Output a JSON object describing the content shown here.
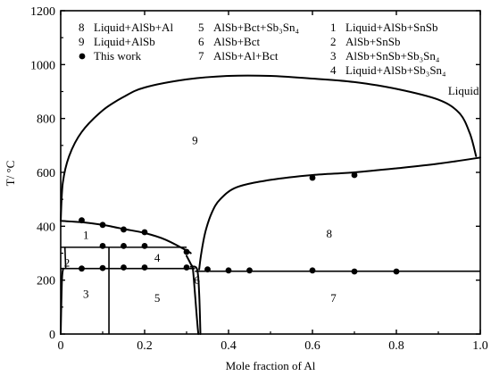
{
  "chart_data": {
    "type": "scatter",
    "xlabel": "Mole fraction of Al",
    "ylabel": "T/ °C",
    "xlim": [
      0,
      1
    ],
    "ylim": [
      0,
      1200
    ],
    "x_ticks": [
      "0",
      "0.2",
      "0.4",
      "0.6",
      "0.8",
      "1.0"
    ],
    "y_ticks": [
      "0",
      "200",
      "400",
      "600",
      "800",
      "1000",
      "1200"
    ],
    "grid": false,
    "legend": [
      {
        "key": "8",
        "text": "Liquid+AlSb+Al"
      },
      {
        "key": "9",
        "text": "Liquid+AlSb"
      },
      {
        "key": "●",
        "text": "This work"
      },
      {
        "key": "5",
        "text": "AlSb+Bct+Sb₃Sn₄"
      },
      {
        "key": "6",
        "text": "AlSb+Bct"
      },
      {
        "key": "7",
        "text": "AlSb+Al+Bct"
      },
      {
        "key": "1",
        "text": "Liquid+AlSb+SnSb"
      },
      {
        "key": "2",
        "text": "AlSb+SnSb"
      },
      {
        "key": "3",
        "text": "AlSb+SnSb+Sb₃Sn₄"
      },
      {
        "key": "4",
        "text": "Liquid+AlSb+Sb₃Sn₄"
      }
    ],
    "region_labels": [
      {
        "text": "9",
        "x": 0.32,
        "y": 705
      },
      {
        "text": "Liquid",
        "x": 0.96,
        "y": 888
      },
      {
        "text": "8",
        "x": 0.64,
        "y": 358
      },
      {
        "text": "1",
        "x": 0.06,
        "y": 353
      },
      {
        "text": "4",
        "x": 0.23,
        "y": 268
      },
      {
        "text": "2",
        "x": 0.015,
        "y": 250
      },
      {
        "text": "3",
        "x": 0.06,
        "y": 135
      },
      {
        "text": "5",
        "x": 0.23,
        "y": 120
      },
      {
        "text": "6",
        "x": 0.325,
        "y": 185
      },
      {
        "text": "7",
        "x": 0.65,
        "y": 120
      }
    ],
    "series": [
      {
        "name": "This work",
        "points": [
          [
            0.05,
            422
          ],
          [
            0.1,
            405
          ],
          [
            0.15,
            388
          ],
          [
            0.2,
            378
          ],
          [
            0.3,
            305
          ],
          [
            0.1,
            327
          ],
          [
            0.15,
            327
          ],
          [
            0.2,
            327
          ],
          [
            0.05,
            243
          ],
          [
            0.1,
            245
          ],
          [
            0.15,
            247
          ],
          [
            0.2,
            247
          ],
          [
            0.3,
            247
          ],
          [
            0.35,
            240
          ],
          [
            0.4,
            236
          ],
          [
            0.45,
            236
          ],
          [
            0.6,
            236
          ],
          [
            0.7,
            232
          ],
          [
            0.8,
            232
          ],
          [
            0.6,
            580
          ],
          [
            0.7,
            590
          ]
        ]
      }
    ],
    "phase_lines": {
      "liquidus_dome": [
        [
          0.0,
          420
        ],
        [
          0.005,
          560
        ],
        [
          0.02,
          660
        ],
        [
          0.05,
          750
        ],
        [
          0.1,
          830
        ],
        [
          0.15,
          880
        ],
        [
          0.2,
          915
        ],
        [
          0.3,
          945
        ],
        [
          0.4,
          958
        ],
        [
          0.5,
          958
        ],
        [
          0.6,
          948
        ],
        [
          0.7,
          935
        ],
        [
          0.8,
          910
        ],
        [
          0.9,
          870
        ],
        [
          0.95,
          820
        ],
        [
          0.975,
          745
        ],
        [
          0.99,
          660
        ]
      ],
      "liquidus_al_rich": [
        [
          0.33,
          240
        ],
        [
          0.335,
          300
        ],
        [
          0.345,
          380
        ],
        [
          0.36,
          450
        ],
        [
          0.38,
          500
        ],
        [
          0.42,
          545
        ],
        [
          0.5,
          572
        ],
        [
          0.6,
          590
        ],
        [
          0.7,
          600
        ],
        [
          0.8,
          615
        ],
        [
          0.9,
          632
        ],
        [
          1.0,
          655
        ]
      ],
      "liquidus_sn_rich": [
        [
          0.0,
          420
        ],
        [
          0.05,
          415
        ],
        [
          0.1,
          405
        ],
        [
          0.15,
          390
        ],
        [
          0.2,
          375
        ],
        [
          0.25,
          350
        ],
        [
          0.3,
          310
        ],
        [
          0.31,
          300
        ]
      ],
      "solid_boundary_left": [
        [
          0.3,
          290
        ],
        [
          0.31,
          260
        ],
        [
          0.315,
          240
        ],
        [
          0.32,
          150
        ],
        [
          0.325,
          50
        ],
        [
          0.328,
          0
        ]
      ],
      "solid_boundary_right": [
        [
          0.31,
          250
        ],
        [
          0.325,
          240
        ],
        [
          0.33,
          150
        ],
        [
          0.333,
          0
        ]
      ],
      "invariant_lines": [
        {
          "from": [
            0.0,
            322
          ],
          "to": [
            0.3,
            322
          ]
        },
        {
          "from": [
            0.0,
            243
          ],
          "to": [
            0.32,
            243
          ]
        },
        {
          "from": [
            0.32,
            233
          ],
          "to": [
            1.0,
            233
          ]
        }
      ],
      "vertical_lines": [
        {
          "from": [
            0.115,
            0
          ],
          "to": [
            0.115,
            322
          ]
        },
        {
          "from": [
            0.01,
            322
          ],
          "to": [
            0.012,
            243
          ]
        }
      ],
      "left_edge_curve": [
        [
          0.0,
          0
        ],
        [
          0.003,
          200
        ],
        [
          0.006,
          243
        ]
      ]
    }
  }
}
